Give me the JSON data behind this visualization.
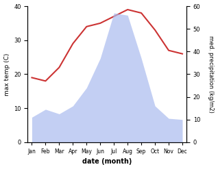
{
  "months": [
    "Jan",
    "Feb",
    "Mar",
    "Apr",
    "May",
    "Jun",
    "Jul",
    "Aug",
    "Sep",
    "Oct",
    "Nov",
    "Dec"
  ],
  "max_temp": [
    19.0,
    18.0,
    22.0,
    29.0,
    34.0,
    35.0,
    37.0,
    39.0,
    38.0,
    33.0,
    27.0,
    26.0
  ],
  "precipitation": [
    11.0,
    14.5,
    12.5,
    16.0,
    24.0,
    37.0,
    57.0,
    56.0,
    37.0,
    16.0,
    10.5,
    10.0
  ],
  "temp_ylim": [
    0,
    40
  ],
  "precip_ylim": [
    0,
    60
  ],
  "temp_color": "#cc3333",
  "precip_color": "#aabbee",
  "ylabel_left": "max temp (C)",
  "ylabel_right": "med. precipitation (kg/m2)",
  "xlabel": "date (month)",
  "temp_yticks": [
    0,
    10,
    20,
    30,
    40
  ],
  "precip_yticks": [
    0,
    10,
    20,
    30,
    40,
    50,
    60
  ],
  "background_color": "#ffffff"
}
